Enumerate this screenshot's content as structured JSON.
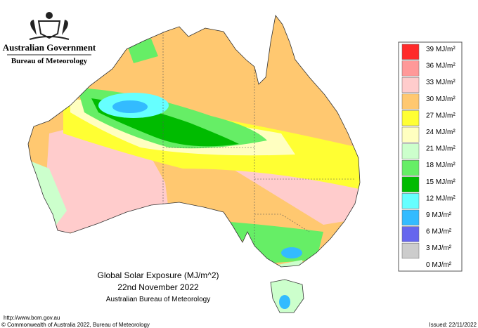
{
  "header": {
    "government": "Australian Government",
    "agency": "Bureau of Meteorology"
  },
  "legend": {
    "labels": [
      "39 MJ/m²",
      "36 MJ/m²",
      "33 MJ/m²",
      "30 MJ/m²",
      "27 MJ/m²",
      "24 MJ/m²",
      "21 MJ/m²",
      "18 MJ/m²",
      "15 MJ/m²",
      "12 MJ/m²",
      "9 MJ/m²",
      "6 MJ/m²",
      "3 MJ/m²",
      "0 MJ/m²"
    ],
    "colors": [
      "#ff2a2a",
      "#ff9999",
      "#ffcccc",
      "#ffc870",
      "#ffff33",
      "#ffffc0",
      "#ccffcc",
      "#66ee66",
      "#00bb00",
      "#66ffff",
      "#33bbff",
      "#6666ee",
      "#cccccc"
    ]
  },
  "title": {
    "line1": "Global Solar Exposure (MJ/m^2)",
    "line2": "22nd November 2022",
    "line3": "Australian Bureau of Meteorology"
  },
  "footer": {
    "url": "http://www.bom.gov.au",
    "copyright": "© Commonwealth of Australia 2022, Bureau of Meteorology",
    "issued": "Issued: 22/11/2022"
  }
}
